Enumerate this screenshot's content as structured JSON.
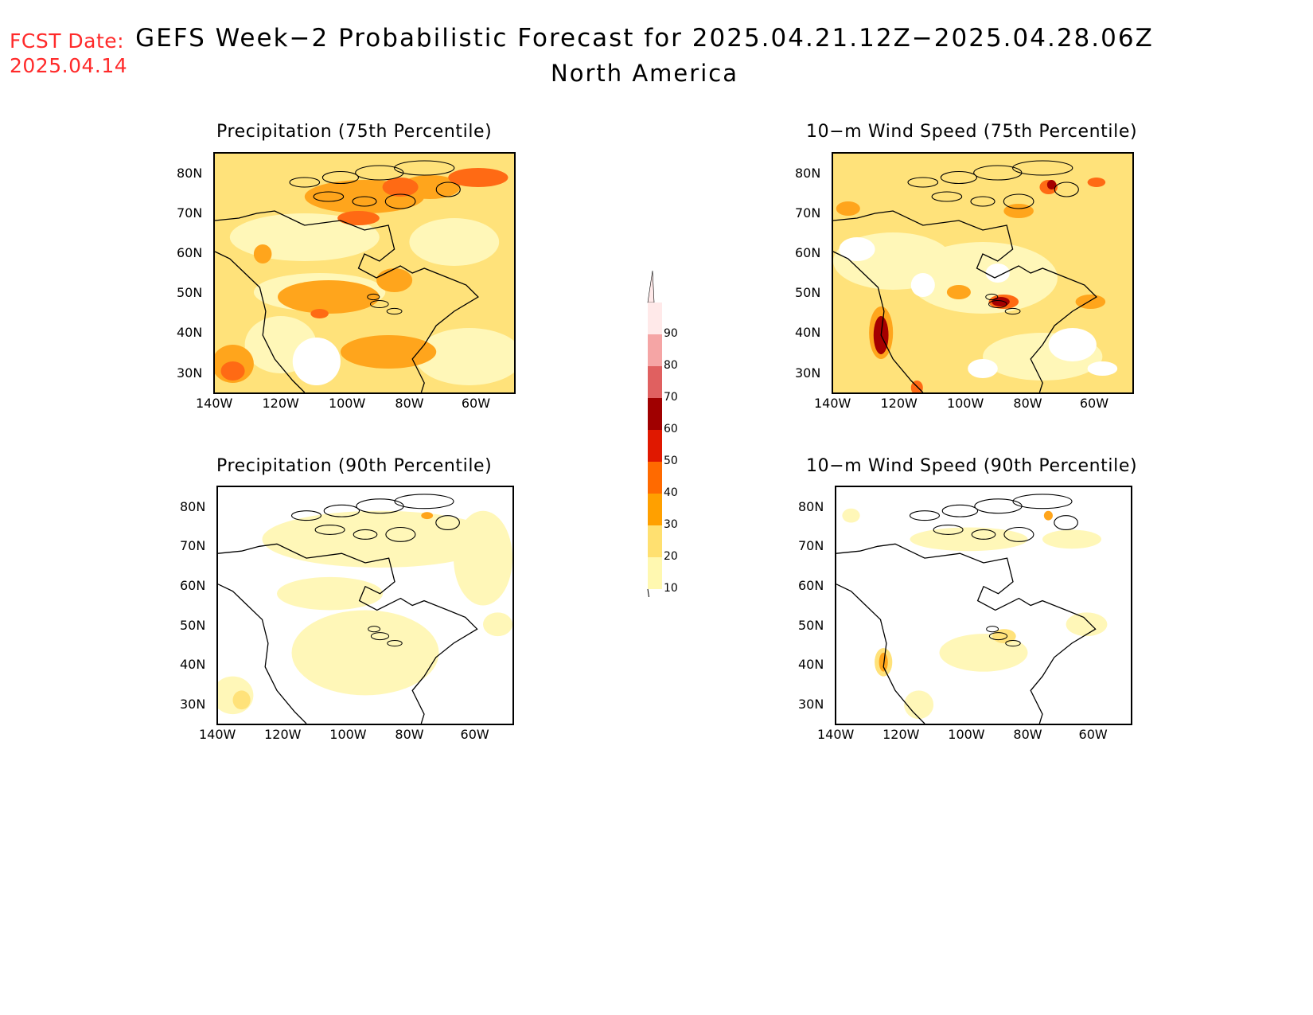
{
  "header": {
    "fcst_label": "FCST Date:",
    "fcst_date": "2025.04.14",
    "title": "GEFS Week−2 Probabilistic Forecast for 2025.04.21.12Z−2025.04.28.06Z",
    "subtitle": "North America"
  },
  "panels": [
    {
      "id": "p75",
      "title": "Precipitation (75th Percentile)"
    },
    {
      "id": "w75",
      "title": "10−m Wind Speed (75th Percentile)"
    },
    {
      "id": "p90",
      "title": "Precipitation (90th Percentile)"
    },
    {
      "id": "w90",
      "title": "10−m Wind Speed (90th Percentile)"
    }
  ],
  "axes": {
    "lat_labels": [
      "80N",
      "70N",
      "60N",
      "50N",
      "40N",
      "30N"
    ],
    "lon_labels": [
      "140W",
      "120W",
      "100W",
      "80W",
      "60W"
    ]
  },
  "colorbar": {
    "labels": [
      "90",
      "80",
      "70",
      "60",
      "50",
      "40",
      "30",
      "20",
      "10"
    ],
    "colors": [
      "#ffe9e9",
      "#f5a5a5",
      "#e06060",
      "#a00000",
      "#e01800",
      "#ff6a00",
      "#ffa000",
      "#ffe070",
      "#fff8b0"
    ]
  },
  "colors": {
    "c10": "#fff7b8",
    "c20": "#ffe27a",
    "c30": "#ffa51c",
    "c40": "#ff6a14",
    "c60": "#a50000",
    "fcst_red": "#ff2a2a"
  }
}
